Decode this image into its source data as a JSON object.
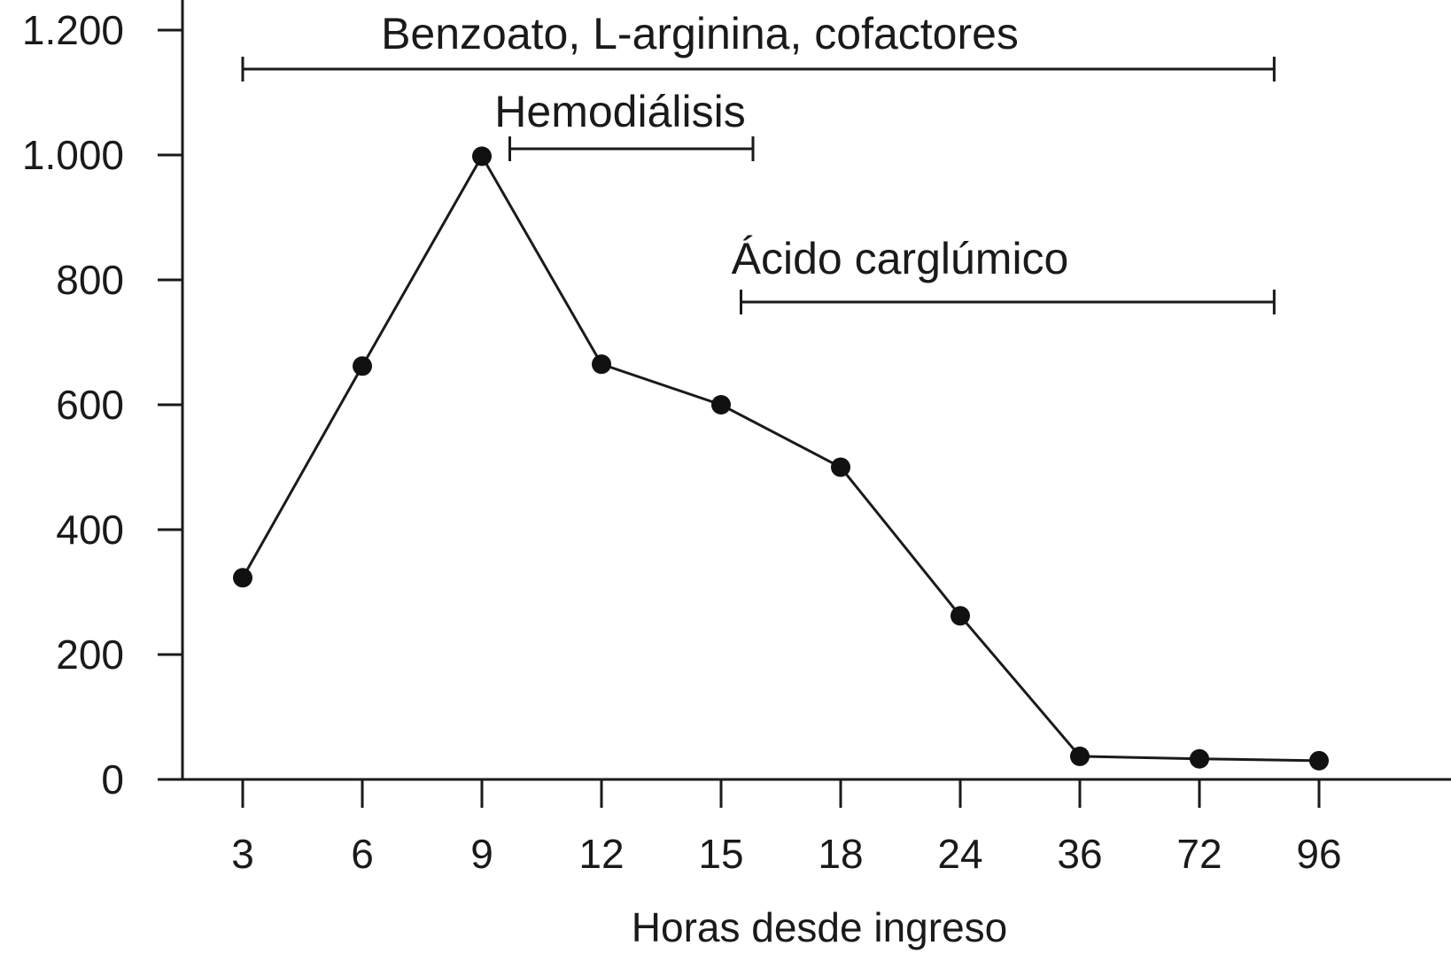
{
  "chart_data": {
    "type": "line",
    "xlabel": "Horas desde ingreso",
    "ylabel": "",
    "categories": [
      "3",
      "6",
      "9",
      "12",
      "15",
      "18",
      "24",
      "36",
      "72",
      "96"
    ],
    "ylim": [
      0,
      1200
    ],
    "yticks": [
      0,
      200,
      400,
      600,
      800,
      1000,
      1200
    ],
    "ytick_labels": [
      "0",
      "200",
      "400",
      "600",
      "800",
      "1.000",
      "1.200"
    ],
    "series": [
      {
        "values": [
          323,
          662,
          998,
          665,
          600,
          500,
          262,
          37,
          33,
          30
        ]
      }
    ],
    "intervals": [
      {
        "label": "Benzoato, L-arginina, cofactores",
        "start": 3,
        "end": 87
      },
      {
        "label": "Hemodiálisis",
        "start": 9.7,
        "end": 15.8
      },
      {
        "label": "Ácido carglúmico",
        "start": 15.5,
        "end": 87
      }
    ],
    "grid": false,
    "legend": "none",
    "colors": {
      "line": "#1a1a1a",
      "marker": "#111111",
      "axis": "#1a1a1a"
    }
  }
}
